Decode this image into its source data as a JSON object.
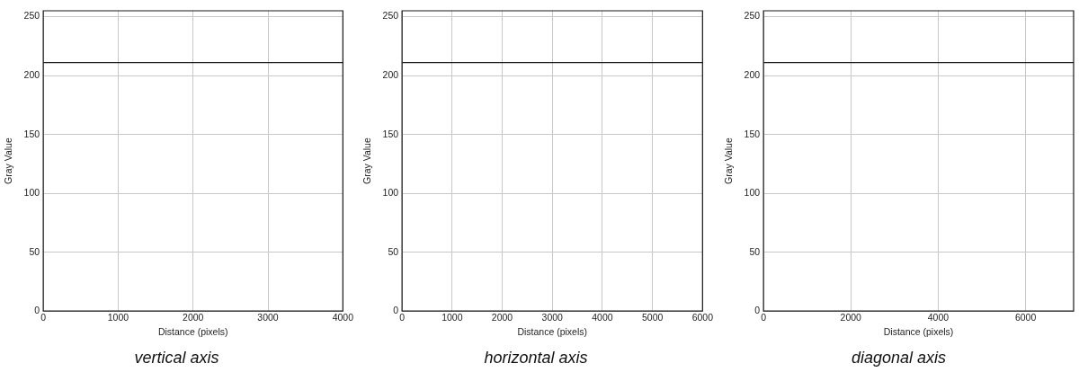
{
  "chart_data": [
    {
      "type": "line",
      "title": "vertical axis",
      "xlabel": "Distance (pixels)",
      "ylabel": "Gray Value",
      "x": [
        0,
        4000
      ],
      "values": [
        211,
        211
      ],
      "color": "#1a1a1a",
      "xlim": [
        0,
        4000
      ],
      "xticks": [
        0,
        1000,
        2000,
        3000,
        4000
      ],
      "ylim": [
        0,
        255
      ],
      "yticks": [
        0,
        50,
        100,
        150,
        200,
        250
      ],
      "grid": true,
      "legend": false,
      "marker": "none"
    },
    {
      "type": "line",
      "title": "horizontal axis",
      "xlabel": "Distance (pixels)",
      "ylabel": "Gray Value",
      "x": [
        0,
        6000
      ],
      "values": [
        211,
        211
      ],
      "color": "#1a1a1a",
      "xlim": [
        0,
        6000
      ],
      "xticks": [
        0,
        1000,
        2000,
        3000,
        4000,
        5000,
        6000
      ],
      "ylim": [
        0,
        255
      ],
      "yticks": [
        0,
        50,
        100,
        150,
        200,
        250
      ],
      "grid": true,
      "legend": false,
      "marker": "none"
    },
    {
      "type": "line",
      "title": "diagonal axis",
      "xlabel": "Distance (pixels)",
      "ylabel": "Gray Value",
      "x": [
        0,
        7100
      ],
      "values": [
        211,
        211
      ],
      "color": "#1a1a1a",
      "xlim": [
        0,
        7100
      ],
      "xticks": [
        0,
        2000,
        4000,
        6000
      ],
      "ylim": [
        0,
        255
      ],
      "yticks": [
        0,
        50,
        100,
        150,
        200,
        250
      ],
      "grid": true,
      "legend": false,
      "marker": "none"
    }
  ]
}
